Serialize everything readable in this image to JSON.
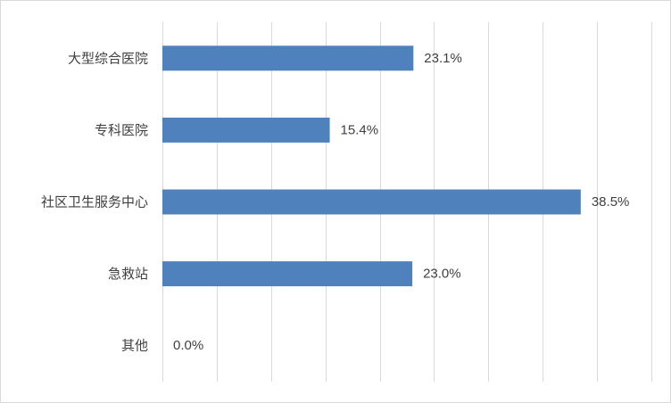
{
  "chart_data": {
    "type": "bar",
    "orientation": "horizontal",
    "categories": [
      "大型综合医院",
      "专科医院",
      "社区卫生服务中心",
      "急救站",
      "其他"
    ],
    "values": [
      23.1,
      15.4,
      38.5,
      23.0,
      0.0
    ],
    "data_labels": [
      "23.1%",
      "15.4%",
      "38.5%",
      "23.0%",
      "0.0%"
    ],
    "xlim": [
      0,
      45
    ],
    "x_grid_step": 5,
    "grid": true,
    "bar_color": "#4f81bd",
    "grid_color": "#d9d9d9",
    "legend": "none"
  }
}
